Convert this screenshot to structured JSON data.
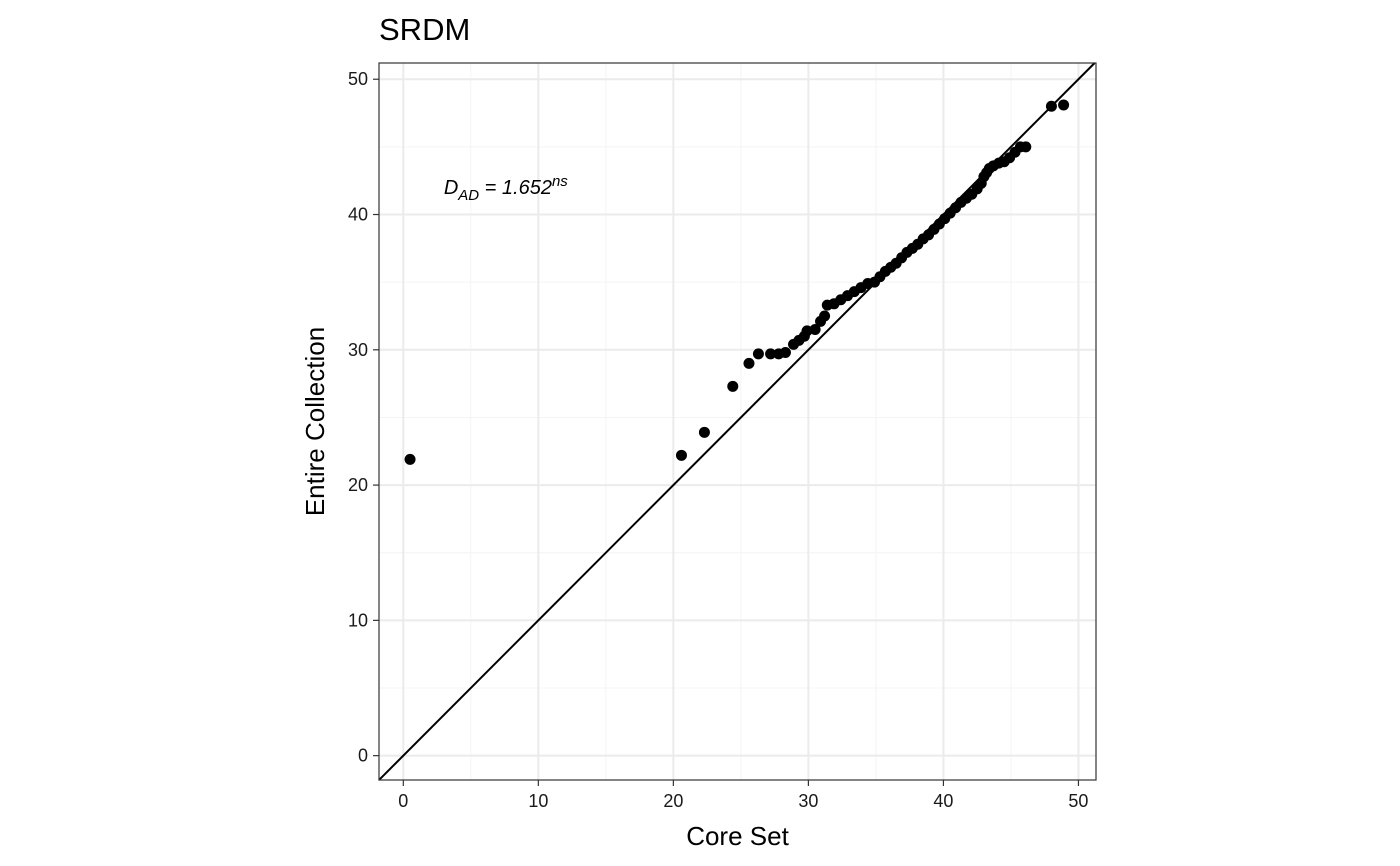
{
  "chart_data": {
    "type": "scatter",
    "title": "SRDM",
    "xlabel": "Core Set",
    "ylabel": "Entire Collection",
    "xlim": [
      -1.8,
      51.3
    ],
    "ylim": [
      -1.8,
      51.2
    ],
    "x_ticks": [
      0,
      10,
      20,
      30,
      40,
      50
    ],
    "y_ticks": [
      0,
      10,
      20,
      30,
      40,
      50
    ],
    "x_tick_labels": [
      "0",
      "10",
      "20",
      "30",
      "40",
      "50"
    ],
    "y_tick_labels": [
      "0",
      "10",
      "20",
      "30",
      "40",
      "50"
    ],
    "grid": true,
    "reference_line": {
      "type": "identity",
      "slope": 1,
      "intercept": 0
    },
    "annotation": {
      "prefix": "D",
      "subscript": "AD",
      "equals": " = 1.652",
      "superscript": "ns",
      "x": 3,
      "y": 41.5
    },
    "colors": {
      "points": "#000000",
      "grid_major": "#ebebeb",
      "grid_minor": "#f4f4f4",
      "panel_border": "#333333"
    },
    "series": [
      {
        "x": [
          0.5,
          20.6,
          22.3,
          24.4,
          25.6,
          26.3,
          27.2,
          27.8,
          28.3,
          28.9,
          29.3,
          29.7,
          29.9,
          30.5,
          30.9,
          31.2,
          31.4,
          31.9,
          32.4,
          32.9,
          33.4,
          33.9,
          34.4,
          34.9,
          35.3,
          35.7,
          36.1,
          36.5,
          36.9,
          37.3,
          37.7,
          38.1,
          38.5,
          38.9,
          39.3,
          39.7,
          40.1,
          40.5,
          40.9,
          41.3,
          41.7,
          42.1,
          42.5,
          42.8,
          43.0,
          43.2,
          43.4,
          43.7,
          44.1,
          44.5,
          44.9,
          45.3,
          45.7,
          46.1,
          48.0,
          48.9
        ],
        "y": [
          21.9,
          22.2,
          23.9,
          27.3,
          29.0,
          29.7,
          29.7,
          29.7,
          29.8,
          30.4,
          30.7,
          31.0,
          31.4,
          31.5,
          32.1,
          32.5,
          33.3,
          33.4,
          33.7,
          34.0,
          34.3,
          34.6,
          34.9,
          35.0,
          35.4,
          35.8,
          36.1,
          36.4,
          36.8,
          37.2,
          37.5,
          37.8,
          38.2,
          38.5,
          38.9,
          39.3,
          39.7,
          40.1,
          40.5,
          40.9,
          41.2,
          41.5,
          41.9,
          42.3,
          42.8,
          43.1,
          43.4,
          43.6,
          43.8,
          43.9,
          44.2,
          44.6,
          45.0,
          45.0,
          48.0,
          48.1
        ]
      }
    ]
  }
}
